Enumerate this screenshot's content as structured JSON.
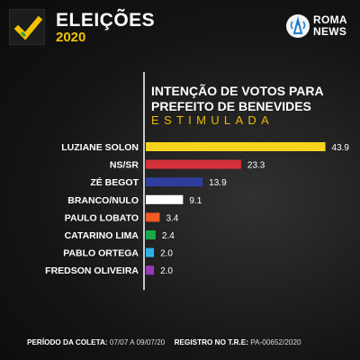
{
  "header": {
    "title": "ELEIÇÕES",
    "year": "2020",
    "brand_icon": "check-icon",
    "news_logo": {
      "line1": "ROMA",
      "line2": "NEWS",
      "icon": "tower-icon"
    }
  },
  "colors": {
    "accent_yellow": "#f2c300",
    "background": "#161616"
  },
  "chart_data": {
    "type": "bar",
    "orientation": "horizontal",
    "title": [
      "INTENÇÃO DE VOTOS PARA",
      "PREFEITO DE BENEVIDES"
    ],
    "subtitle": "ESTIMULADA",
    "xlim": [
      0,
      44
    ],
    "grid": false,
    "legend": "none",
    "categories": [
      "LUZIANE SOLON",
      "NS/SR",
      "ZÉ BEGOT",
      "BRANCO/NULO",
      "PAULO LOBATO",
      "CATARINO LIMA",
      "PABLO ORTEGA",
      "FREDSON OLIVEIRA"
    ],
    "values": [
      43.9,
      23.3,
      13.9,
      9.1,
      3.4,
      2.4,
      2.0,
      2.0
    ],
    "value_labels": [
      "43.9",
      "23.3",
      "13.9",
      "9.1",
      "3.4",
      "2.4",
      "2.0",
      "2.0"
    ],
    "bar_colors": [
      "#f7d31e",
      "#d3303a",
      "#2f3d9e",
      "#ffffff",
      "#f05a24",
      "#19a84a",
      "#2bb3e6",
      "#9a36b3"
    ]
  },
  "footer": {
    "period_label": "PERÍODO DA COLETA:",
    "period_value": "07/07 A 09/07/20",
    "registry_label": "REGISTRO NO T.R.E:",
    "registry_value": "PA-00652/2020"
  }
}
